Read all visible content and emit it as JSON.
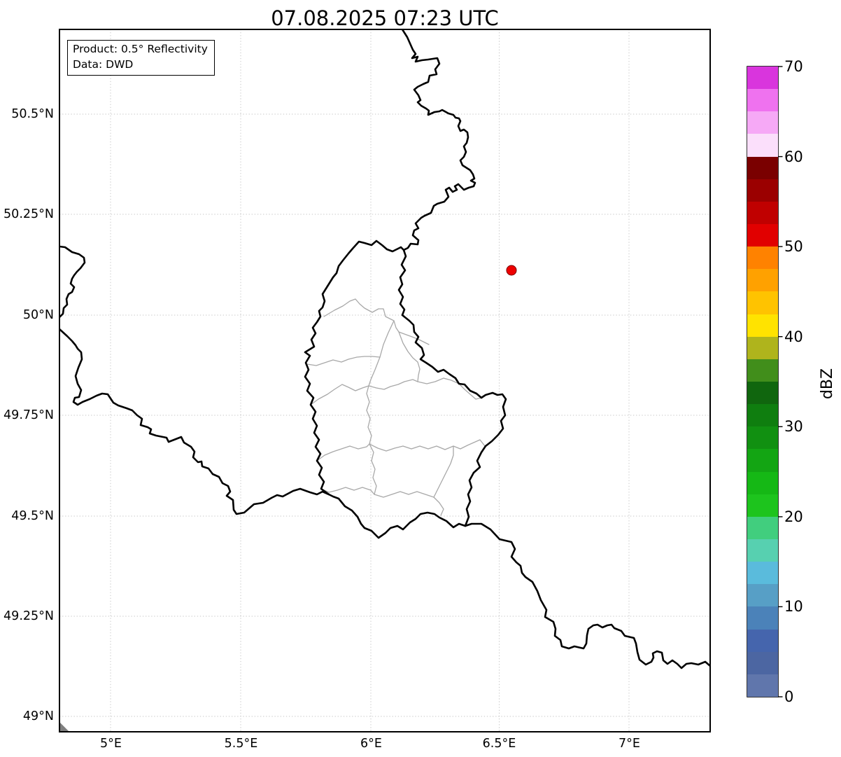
{
  "figure": {
    "title": "07.08.2025 07:23 UTC",
    "background": "#ffffff"
  },
  "info_box": {
    "product_line": "Product: 0.5° Reflectivity",
    "data_line": "Data: DWD"
  },
  "map": {
    "latitude_ticks": [
      "50.5°N",
      "50.25°N",
      "50°N",
      "49.75°N",
      "49.5°N",
      "49.25°N",
      "49°N"
    ],
    "longitude_ticks": [
      "5°E",
      "5.5°E",
      "6°E",
      "6.5°E",
      "7°E"
    ],
    "country_border_color": "#000000",
    "district_border_color": "#a8a8a8",
    "gridline_color": "#c4c4c4",
    "marker": {
      "fill_color": "#ee0000",
      "edge_color": "#7a0000"
    }
  },
  "colorbar": {
    "label": "dBZ",
    "tick_labels": [
      "0",
      "10",
      "20",
      "30",
      "40",
      "50",
      "60",
      "70"
    ],
    "min_value": 0,
    "max_value": 70,
    "step_dbz": 2.5,
    "colors_bottom_to_top": [
      "#6076ac",
      "#4c66a2",
      "#4565ad",
      "#4b82b9",
      "#579fc6",
      "#5abbdc",
      "#57d0b0",
      "#41ce7e",
      "#1dc41d",
      "#15b815",
      "#13a513",
      "#119011",
      "#0f7e0f",
      "#10660e",
      "#418e1b",
      "#afb41c",
      "#ffe300",
      "#ffc300",
      "#ffa100",
      "#ff8200",
      "#e10000",
      "#c00000",
      "#9b0000",
      "#7a0000",
      "#fbdffb",
      "#f6a9f6",
      "#ef72ef",
      "#d935dd"
    ]
  }
}
